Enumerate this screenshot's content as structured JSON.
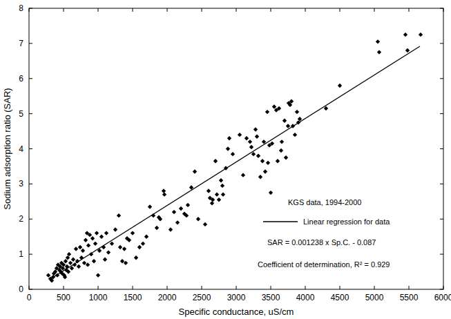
{
  "chart_data": {
    "type": "scatter",
    "x_label": "Specific conductance, uS/cm",
    "y_label": "Sodium adsorption ratio (SAR)",
    "annotations": [
      "KGS data, 1994-2000",
      "SAR = 0.001238 x Sp.C. - 0.087",
      "Coefficient of determination, R² = 0.929"
    ],
    "xlim": [
      0,
      6000
    ],
    "ylim": [
      0,
      8
    ],
    "xticks": [
      0,
      500,
      1000,
      1500,
      2000,
      2500,
      3000,
      3500,
      4000,
      4500,
      5000,
      5500,
      6000
    ],
    "yticks": [
      0,
      1,
      2,
      3,
      4,
      5,
      6,
      7,
      8
    ],
    "grid": false,
    "legend": "lower right",
    "series": [
      {
        "type": "scatter",
        "marker": "diamond",
        "color": "#000000",
        "x": [
          280,
          310,
          330,
          350,
          360,
          380,
          400,
          410,
          420,
          440,
          450,
          460,
          470,
          480,
          490,
          500,
          510,
          520,
          530,
          540,
          550,
          560,
          570,
          580,
          600,
          620,
          640,
          660,
          680,
          700,
          720,
          740,
          760,
          780,
          800,
          820,
          840,
          850,
          860,
          880,
          900,
          920,
          940,
          960,
          980,
          1000,
          1020,
          1050,
          1080,
          1100,
          1120,
          1150,
          1200,
          1250,
          1300,
          1320,
          1350,
          1380,
          1400,
          1420,
          1450,
          1500,
          1550,
          1600,
          1650,
          1700,
          1750,
          1800,
          1850,
          1880,
          1900,
          1950,
          1960,
          2050,
          2100,
          2150,
          2200,
          2250,
          2280,
          2300,
          2350,
          2400,
          2450,
          2550,
          2600,
          2620,
          2650,
          2660,
          2700,
          2720,
          2750,
          2780,
          2800,
          2810,
          2850,
          2880,
          2900,
          2950,
          3050,
          3100,
          3150,
          3200,
          3220,
          3250,
          3280,
          3300,
          3320,
          3350,
          3380,
          3400,
          3420,
          3450,
          3460,
          3480,
          3500,
          3520,
          3550,
          3580,
          3600,
          3620,
          3650,
          3660,
          3700,
          3720,
          3750,
          3760,
          3780,
          3800,
          3820,
          3850,
          3880,
          3900,
          3920,
          4300,
          4500,
          5050,
          5070,
          5450,
          5480,
          5670
        ],
        "values": [
          0.4,
          0.3,
          0.25,
          0.35,
          0.45,
          0.5,
          0.6,
          0.4,
          0.7,
          0.55,
          0.65,
          0.5,
          0.75,
          0.45,
          0.6,
          0.7,
          0.4,
          0.35,
          0.8,
          0.55,
          0.65,
          0.9,
          0.5,
          1.0,
          0.75,
          0.6,
          0.85,
          0.7,
          1.15,
          0.8,
          0.65,
          1.2,
          0.9,
          1.1,
          0.75,
          1.4,
          1.6,
          0.7,
          1.25,
          1.55,
          1.0,
          1.45,
          0.8,
          1.3,
          1.6,
          0.4,
          1.1,
          1.5,
          1.2,
          0.85,
          1.6,
          1.05,
          1.3,
          1.7,
          2.1,
          1.2,
          0.8,
          1.15,
          0.75,
          1.45,
          1.4,
          1.6,
          0.9,
          1.2,
          1.3,
          1.5,
          2.35,
          2.1,
          1.75,
          2.05,
          2.0,
          2.8,
          2.7,
          1.7,
          2.2,
          1.9,
          2.3,
          2.15,
          2.1,
          2.4,
          2.9,
          3.35,
          2.0,
          1.85,
          2.8,
          2.6,
          2.45,
          2.55,
          3.65,
          2.7,
          2.55,
          3.1,
          2.95,
          2.7,
          3.45,
          4.0,
          4.3,
          3.85,
          4.4,
          3.25,
          4.3,
          4.2,
          4.05,
          3.85,
          4.55,
          4.35,
          3.8,
          3.2,
          3.65,
          4.2,
          3.35,
          5.05,
          3.6,
          4.1,
          2.75,
          4.15,
          5.2,
          5.1,
          3.65,
          5.15,
          3.95,
          4.2,
          4.8,
          3.75,
          4.65,
          5.3,
          5.25,
          5.35,
          4.65,
          4.4,
          5.05,
          4.75,
          4.85,
          5.15,
          5.8,
          7.05,
          6.75,
          7.25,
          6.8,
          7.25
        ]
      },
      {
        "type": "line",
        "name": "Linear regression for data",
        "line_style": "solid",
        "color": "#000000",
        "x": [
          300,
          5660
        ],
        "values": [
          0.28,
          6.92
        ]
      }
    ]
  }
}
